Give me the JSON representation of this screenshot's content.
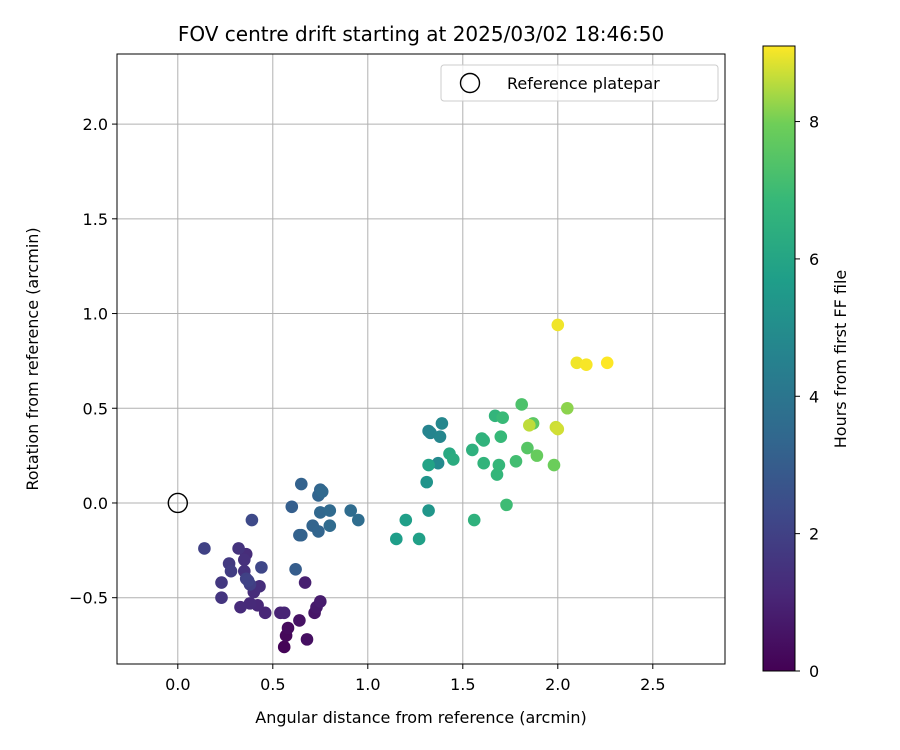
{
  "chart_data": {
    "type": "scatter",
    "title": "FOV centre drift starting at 2025/03/02 18:46:50",
    "xlabel": "Angular distance from reference (arcmin)",
    "ylabel": "Rotation from reference (arcmin)",
    "xlim": [
      -0.32,
      2.88
    ],
    "ylim": [
      -0.85,
      2.37
    ],
    "xticks": [
      0.0,
      0.5,
      1.0,
      1.5,
      2.0,
      2.5
    ],
    "xtick_labels": [
      "0.0",
      "0.5",
      "1.0",
      "1.5",
      "2.0",
      "2.5"
    ],
    "yticks": [
      -0.5,
      0.0,
      0.5,
      1.0,
      1.5,
      2.0
    ],
    "ytick_labels": [
      "−0.5",
      "0.0",
      "0.5",
      "1.0",
      "1.5",
      "2.0"
    ],
    "grid": true,
    "legend": {
      "placement": "top-right",
      "entries": [
        "Reference platepar"
      ]
    },
    "reference_point": {
      "x": 0.0,
      "y": 0.0
    },
    "colormap": "viridis",
    "colorbar": {
      "label": "Hours from first FF file",
      "range": [
        0,
        9.1
      ],
      "ticks": [
        0,
        2,
        4,
        6,
        8
      ],
      "tick_labels": [
        "0",
        "2",
        "4",
        "6",
        "8"
      ]
    },
    "points": [
      {
        "x": 0.56,
        "y": -0.76,
        "h": 0.1
      },
      {
        "x": 0.57,
        "y": -0.7,
        "h": 0.2
      },
      {
        "x": 0.58,
        "y": -0.66,
        "h": 0.3
      },
      {
        "x": 0.68,
        "y": -0.72,
        "h": 0.4
      },
      {
        "x": 0.64,
        "y": -0.62,
        "h": 0.5
      },
      {
        "x": 0.72,
        "y": -0.58,
        "h": 0.6
      },
      {
        "x": 0.73,
        "y": -0.55,
        "h": 0.7
      },
      {
        "x": 0.75,
        "y": -0.52,
        "h": 0.8
      },
      {
        "x": 0.67,
        "y": -0.42,
        "h": 0.9
      },
      {
        "x": 0.54,
        "y": -0.58,
        "h": 1.0
      },
      {
        "x": 0.56,
        "y": -0.58,
        "h": 1.05
      },
      {
        "x": 0.46,
        "y": -0.58,
        "h": 1.1
      },
      {
        "x": 0.42,
        "y": -0.54,
        "h": 1.15
      },
      {
        "x": 0.38,
        "y": -0.53,
        "h": 1.2
      },
      {
        "x": 0.33,
        "y": -0.55,
        "h": 1.25
      },
      {
        "x": 0.4,
        "y": -0.47,
        "h": 1.3
      },
      {
        "x": 0.43,
        "y": -0.44,
        "h": 1.35
      },
      {
        "x": 0.36,
        "y": -0.27,
        "h": 1.3
      },
      {
        "x": 0.35,
        "y": -0.3,
        "h": 1.4
      },
      {
        "x": 0.35,
        "y": -0.36,
        "h": 1.45
      },
      {
        "x": 0.32,
        "y": -0.24,
        "h": 1.5
      },
      {
        "x": 0.23,
        "y": -0.5,
        "h": 1.6
      },
      {
        "x": 0.23,
        "y": -0.42,
        "h": 1.7
      },
      {
        "x": 0.27,
        "y": -0.32,
        "h": 1.75
      },
      {
        "x": 0.28,
        "y": -0.36,
        "h": 1.85
      },
      {
        "x": 0.38,
        "y": -0.43,
        "h": 1.9
      },
      {
        "x": 0.36,
        "y": -0.4,
        "h": 2.0
      },
      {
        "x": 0.37,
        "y": -0.41,
        "h": 2.05
      },
      {
        "x": 0.14,
        "y": -0.24,
        "h": 2.0
      },
      {
        "x": 0.44,
        "y": -0.34,
        "h": 2.2
      },
      {
        "x": 0.39,
        "y": -0.09,
        "h": 2.3
      },
      {
        "x": 0.62,
        "y": -0.35,
        "h": 3.0
      },
      {
        "x": 0.6,
        "y": -0.02,
        "h": 3.1
      },
      {
        "x": 0.64,
        "y": -0.17,
        "h": 3.15
      },
      {
        "x": 0.65,
        "y": -0.17,
        "h": 3.2
      },
      {
        "x": 0.65,
        "y": 0.1,
        "h": 3.2
      },
      {
        "x": 0.71,
        "y": -0.12,
        "h": 3.25
      },
      {
        "x": 0.74,
        "y": -0.15,
        "h": 3.3
      },
      {
        "x": 0.74,
        "y": 0.04,
        "h": 3.3
      },
      {
        "x": 0.75,
        "y": 0.07,
        "h": 3.35
      },
      {
        "x": 0.75,
        "y": -0.05,
        "h": 3.4
      },
      {
        "x": 0.76,
        "y": 0.06,
        "h": 3.45
      },
      {
        "x": 0.8,
        "y": -0.04,
        "h": 3.5
      },
      {
        "x": 0.8,
        "y": -0.12,
        "h": 3.55
      },
      {
        "x": 0.91,
        "y": -0.04,
        "h": 3.6
      },
      {
        "x": 0.95,
        "y": -0.09,
        "h": 3.65
      },
      {
        "x": 1.32,
        "y": 0.38,
        "h": 4.6
      },
      {
        "x": 1.33,
        "y": 0.37,
        "h": 4.65
      },
      {
        "x": 1.38,
        "y": 0.35,
        "h": 4.7
      },
      {
        "x": 1.39,
        "y": 0.42,
        "h": 4.75
      },
      {
        "x": 1.37,
        "y": 0.21,
        "h": 4.85
      },
      {
        "x": 1.31,
        "y": 0.11,
        "h": 5.3
      },
      {
        "x": 1.32,
        "y": -0.04,
        "h": 5.35
      },
      {
        "x": 1.15,
        "y": -0.19,
        "h": 5.7
      },
      {
        "x": 1.2,
        "y": -0.09,
        "h": 5.75
      },
      {
        "x": 1.27,
        "y": -0.19,
        "h": 5.8
      },
      {
        "x": 1.32,
        "y": 0.2,
        "h": 5.9
      },
      {
        "x": 1.43,
        "y": 0.26,
        "h": 6.2
      },
      {
        "x": 1.45,
        "y": 0.23,
        "h": 6.3
      },
      {
        "x": 1.55,
        "y": 0.28,
        "h": 6.5
      },
      {
        "x": 1.56,
        "y": -0.09,
        "h": 6.55
      },
      {
        "x": 1.6,
        "y": 0.34,
        "h": 6.6
      },
      {
        "x": 1.61,
        "y": 0.33,
        "h": 6.6
      },
      {
        "x": 1.61,
        "y": 0.21,
        "h": 6.65
      },
      {
        "x": 1.67,
        "y": 0.46,
        "h": 6.7
      },
      {
        "x": 1.68,
        "y": 0.15,
        "h": 6.75
      },
      {
        "x": 1.69,
        "y": 0.2,
        "h": 6.8
      },
      {
        "x": 1.7,
        "y": 0.35,
        "h": 6.85
      },
      {
        "x": 1.71,
        "y": 0.45,
        "h": 6.9
      },
      {
        "x": 1.73,
        "y": -0.01,
        "h": 7.0
      },
      {
        "x": 1.78,
        "y": 0.22,
        "h": 7.1
      },
      {
        "x": 1.81,
        "y": 0.52,
        "h": 7.3
      },
      {
        "x": 1.84,
        "y": 0.29,
        "h": 7.5
      },
      {
        "x": 1.87,
        "y": 0.42,
        "h": 7.6
      },
      {
        "x": 1.89,
        "y": 0.25,
        "h": 7.8
      },
      {
        "x": 1.98,
        "y": 0.2,
        "h": 7.9
      },
      {
        "x": 2.05,
        "y": 0.5,
        "h": 8.2
      },
      {
        "x": 1.85,
        "y": 0.41,
        "h": 8.6
      },
      {
        "x": 1.99,
        "y": 0.4,
        "h": 8.7
      },
      {
        "x": 2.0,
        "y": 0.39,
        "h": 8.75
      },
      {
        "x": 2.0,
        "y": 0.94,
        "h": 9.0
      },
      {
        "x": 2.1,
        "y": 0.74,
        "h": 9.0
      },
      {
        "x": 2.15,
        "y": 0.73,
        "h": 9.05
      },
      {
        "x": 2.26,
        "y": 0.74,
        "h": 9.1
      }
    ]
  }
}
